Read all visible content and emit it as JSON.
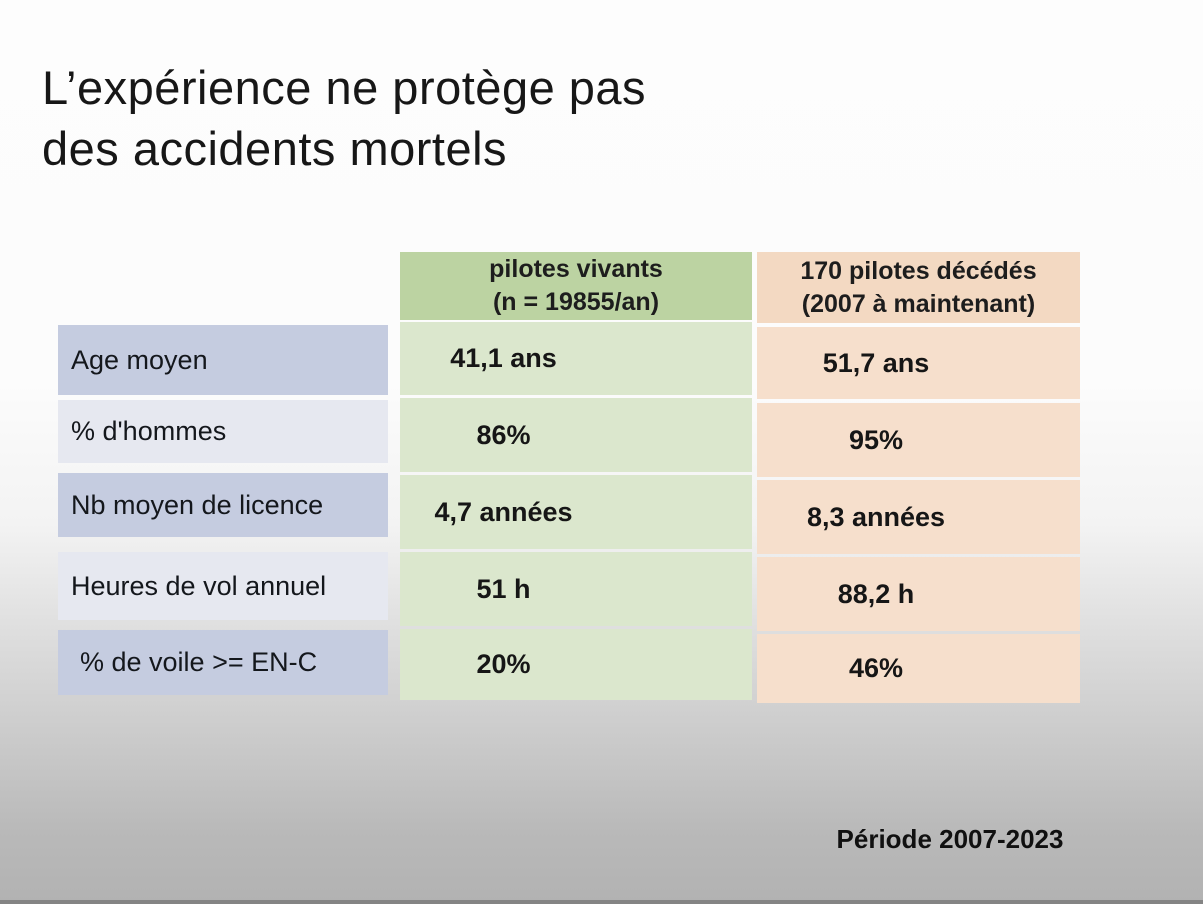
{
  "slide": {
    "title_line1": "L’expérience ne protège pas",
    "title_line2": "des accidents mortels",
    "period_note": "Période 2007-2023"
  },
  "table": {
    "columns": [
      {
        "header_line1": "pilotes vivants",
        "header_line2": "(n = 19855/an)"
      },
      {
        "header_line1": "170 pilotes décédés",
        "header_line2": "(2007 à maintenant)"
      }
    ],
    "rows": [
      {
        "label": "Age moyen",
        "vivants": "41,1 ans",
        "decedes": "51,7 ans"
      },
      {
        "label": "% d'hommes",
        "vivants": "86%",
        "decedes": "95%"
      },
      {
        "label": "Nb moyen de licence",
        "vivants": "4,7 années",
        "decedes": "8,3 années"
      },
      {
        "label": "Heures de vol annuel",
        "vivants": "51 h",
        "decedes": "88,2 h"
      },
      {
        "label": "% de voile >= EN-C",
        "vivants": "20%",
        "decedes": "46%"
      }
    ]
  },
  "colors": {
    "label-dark": "#c5cce0",
    "label-light": "#e6e8f0",
    "green-header": "#bcd3a2",
    "green-body": "#dbe7cd",
    "peach-header": "#f3d9c2",
    "peach-body": "#f6dfcc",
    "bg-bottom": "#b2b2b2"
  }
}
